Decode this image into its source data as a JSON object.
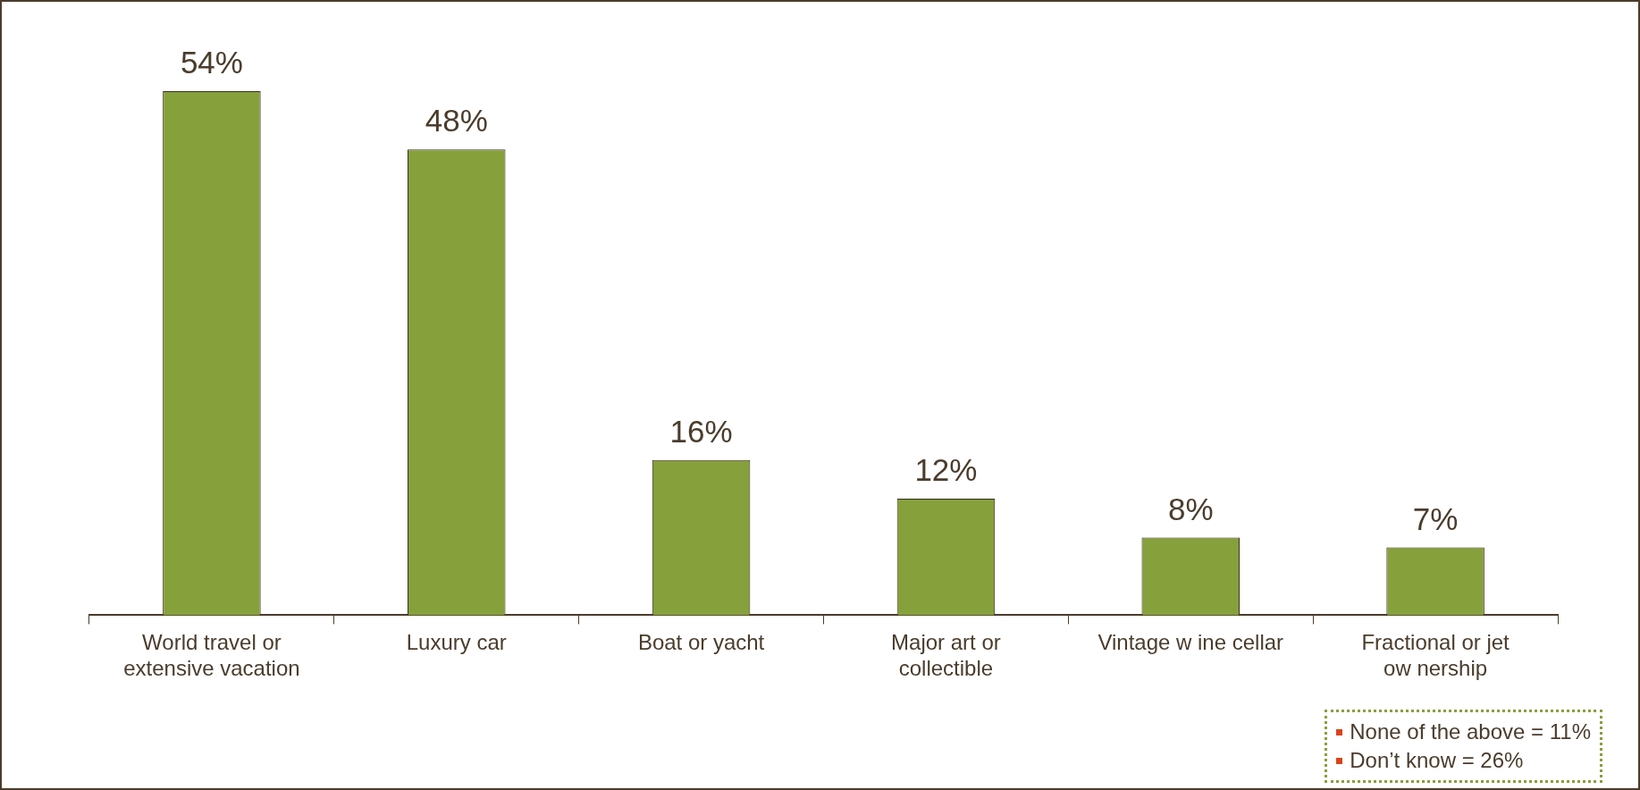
{
  "chart_data": {
    "type": "bar",
    "categories": [
      "World travel or\nextensive vacation",
      "Luxury car",
      "Boat or yacht",
      "Major art or\ncollectible",
      "Vintage w ine cellar",
      "Fractional or jet\now nership"
    ],
    "values": [
      54,
      48,
      16,
      12,
      8,
      7
    ],
    "value_labels": [
      "54%",
      "48%",
      "16%",
      "12%",
      "8%",
      "7%"
    ],
    "color": "#86a03c",
    "relative": false,
    "grid": false,
    "legend": false,
    "annotations": [
      "None of the above = 11%",
      "Don’t know = 26%"
    ]
  }
}
